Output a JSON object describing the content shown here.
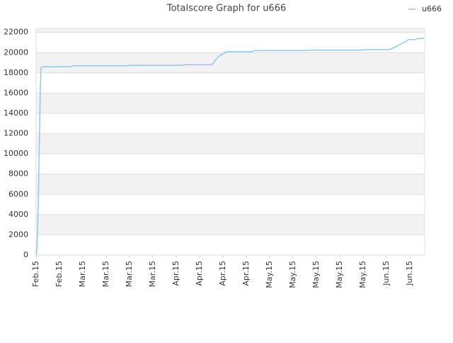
{
  "chart_data": {
    "type": "line",
    "title": "Totalscore Graph for u666",
    "series": [
      {
        "name": "u666",
        "color": "#8ec8f0",
        "x": [
          0,
          0.03,
          0.06,
          0.09,
          0.12,
          0.15,
          0.18,
          0.21,
          0.27,
          1.48,
          1.58,
          3.91,
          3.97,
          6.27,
          6.33,
          7.52,
          7.7,
          7.85,
          8.03,
          8.15,
          9.27,
          9.36,
          11.64,
          11.7,
          13.97,
          14.03,
          15.12,
          15.42,
          15.73,
          15.97,
          16.27,
          16.33,
          16.61
        ],
        "values": [
          0,
          500,
          2000,
          4800,
          8700,
          12500,
          16500,
          18500,
          18600,
          18600,
          18700,
          18700,
          18750,
          18750,
          18800,
          18800,
          19300,
          19700,
          19900,
          20100,
          20100,
          20200,
          20200,
          20250,
          20250,
          20300,
          20300,
          20600,
          21000,
          21300,
          21300,
          21400,
          21400
        ]
      }
    ],
    "xlim": [
      0,
      16.64
    ],
    "xticks": [
      {
        "value": 0,
        "label": "Feb.15"
      },
      {
        "value": 1,
        "label": "Feb.15"
      },
      {
        "value": 2,
        "label": "Mar.15"
      },
      {
        "value": 3,
        "label": "Mar.15"
      },
      {
        "value": 4,
        "label": "Mar.15"
      },
      {
        "value": 5,
        "label": "Mar.15"
      },
      {
        "value": 6,
        "label": "Apr.15"
      },
      {
        "value": 7,
        "label": "Apr.15"
      },
      {
        "value": 8,
        "label": "Apr.15"
      },
      {
        "value": 9,
        "label": "Apr.15"
      },
      {
        "value": 10,
        "label": "May.15"
      },
      {
        "value": 11,
        "label": "May.15"
      },
      {
        "value": 12,
        "label": "May.15"
      },
      {
        "value": 13,
        "label": "May.15"
      },
      {
        "value": 14,
        "label": "May.15"
      },
      {
        "value": 15,
        "label": "Jun.15"
      },
      {
        "value": 16,
        "label": "Jun.15"
      }
    ],
    "ylim": [
      0,
      22400
    ],
    "yticks": [
      0,
      2000,
      4000,
      6000,
      8000,
      10000,
      12000,
      14000,
      16000,
      18000,
      20000,
      22000
    ],
    "grid": true,
    "legend": "top-right"
  }
}
